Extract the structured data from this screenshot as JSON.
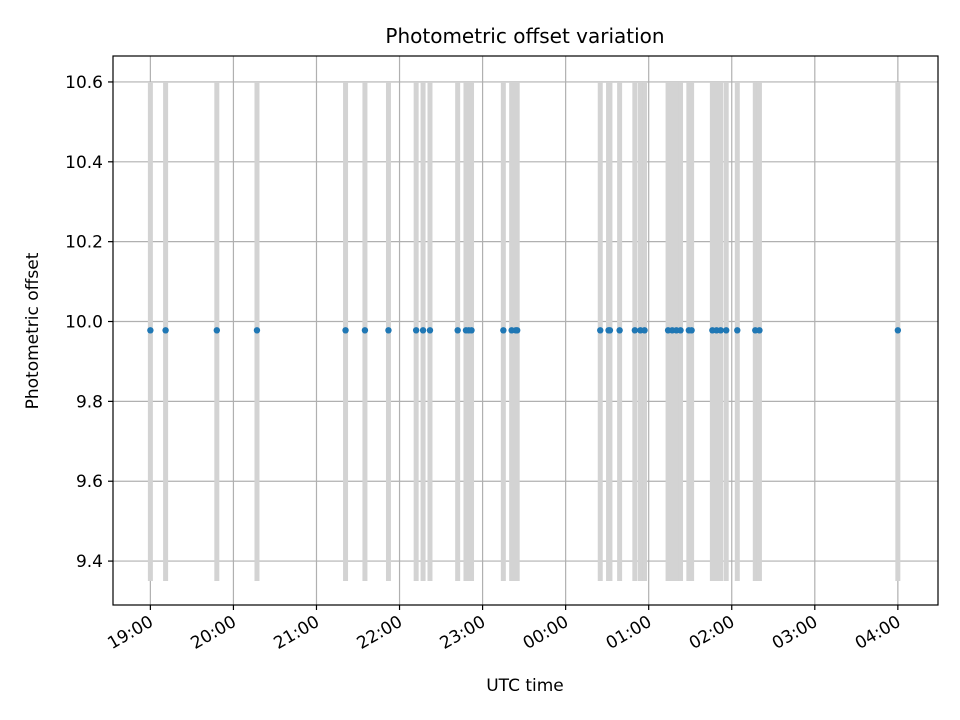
{
  "chart_data": {
    "type": "scatter",
    "title": "Photometric offset variation",
    "xlabel": "UTC time",
    "ylabel": "Photometric offset",
    "x_unit": "UTC time of night (19:00 → 04:00 next day)",
    "xlim": [
      "18:33",
      "04:29"
    ],
    "ylim": [
      9.29,
      10.665
    ],
    "grid": true,
    "x_ticks": [
      "19:00",
      "20:00",
      "21:00",
      "22:00",
      "23:00",
      "00:00",
      "01:00",
      "02:00",
      "03:00",
      "04:00"
    ],
    "y_ticks": [
      "9.4",
      "9.6",
      "9.8",
      "10.0",
      "10.2",
      "10.4",
      "10.6"
    ],
    "y_tick_values": [
      9.4,
      9.6,
      9.8,
      10.0,
      10.2,
      10.4,
      10.6
    ],
    "series": [
      {
        "marker_color": "#1f77b4",
        "errorbar_color": "#d3d3d3",
        "y": 9.978,
        "y_err_low": 9.35,
        "y_err_high": 10.6,
        "x": [
          "19:00",
          "19:11",
          "19:48",
          "20:17",
          "21:21",
          "21:35",
          "21:52",
          "22:12",
          "22:17",
          "22:22",
          "22:42",
          "22:48",
          "22:50",
          "22:52",
          "23:15",
          "23:21",
          "23:24",
          "23:25",
          "00:25",
          "00:31",
          "00:32",
          "00:39",
          "00:50",
          "00:54",
          "00:57",
          "01:14",
          "01:17",
          "01:20",
          "01:23",
          "01:29",
          "01:31",
          "01:46",
          "01:49",
          "01:52",
          "01:56",
          "02:04",
          "02:17",
          "02:20",
          "04:00"
        ]
      }
    ]
  }
}
